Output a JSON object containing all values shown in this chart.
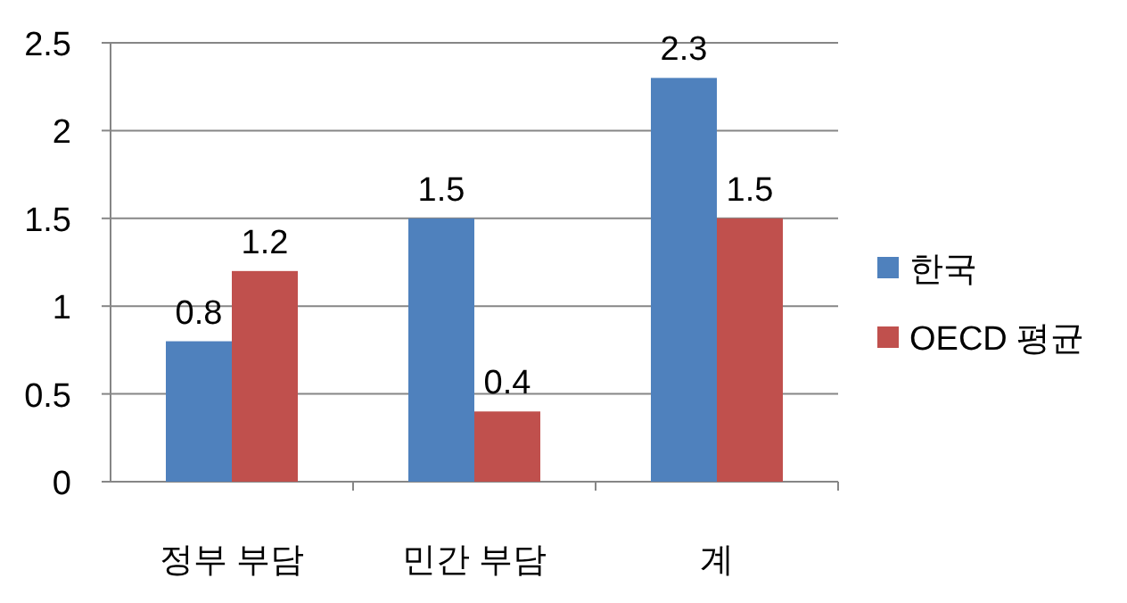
{
  "chart_data": {
    "type": "bar",
    "categories": [
      "정부 부담",
      "민간 부담",
      "계"
    ],
    "series": [
      {
        "name": "한국",
        "color": "#4f81bd",
        "values": [
          0.8,
          1.5,
          2.3
        ]
      },
      {
        "name": "OECD 평균",
        "color": "#c0504d",
        "values": [
          1.2,
          0.4,
          1.5
        ]
      }
    ],
    "ylim": [
      0,
      2.5
    ],
    "yticks": [
      0,
      0.5,
      1,
      1.5,
      2,
      2.5
    ],
    "grid": "y",
    "legend": "right",
    "data_labels": true
  }
}
